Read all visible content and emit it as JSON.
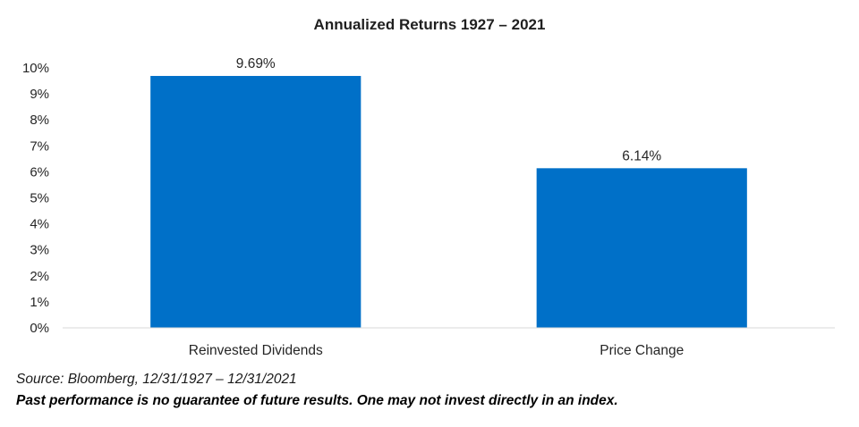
{
  "chart_data": {
    "type": "bar",
    "title": "Annualized  Returns 1927 – 2021",
    "categories": [
      "Reinvested Dividends",
      "Price Change"
    ],
    "values": [
      9.69,
      6.14
    ],
    "data_labels": [
      "9.69%",
      "6.14%"
    ],
    "ylim": [
      0,
      10
    ],
    "yticks": [
      0,
      1,
      2,
      3,
      4,
      5,
      6,
      7,
      8,
      9,
      10
    ],
    "ytick_labels": [
      "0%",
      "1%",
      "2%",
      "3%",
      "4%",
      "5%",
      "6%",
      "7%",
      "8%",
      "9%",
      "10%"
    ],
    "xlabel": "",
    "ylabel": "",
    "grid": false,
    "legend": "none",
    "bar_color": "#0070C8"
  },
  "notes": {
    "source": "Source: Bloomberg, 12/31/1927 – 12/31/2021",
    "disclaimer": "Past performance is no guarantee of future results. One may not invest directly in an index."
  }
}
